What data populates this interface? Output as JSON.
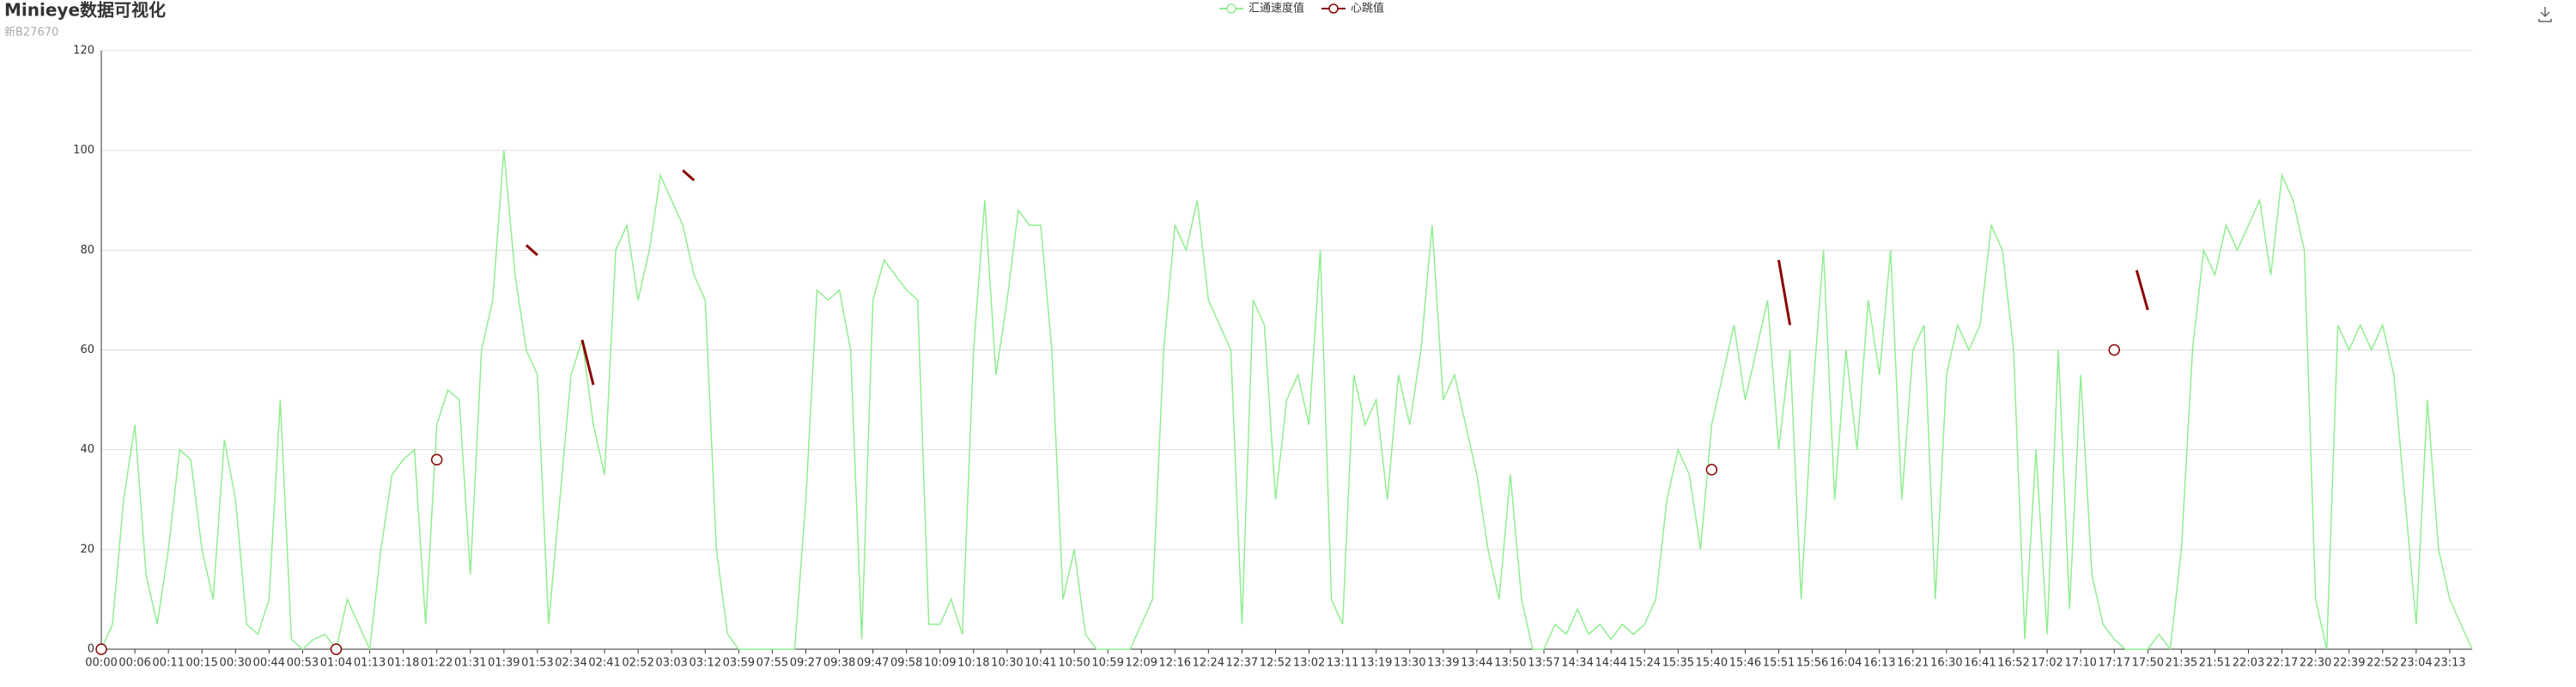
{
  "chart_data": {
    "type": "line",
    "title": "Minieye数据可视化",
    "subtitle": "新B27670",
    "categories": [
      "00:00",
      null,
      null,
      "00:06",
      null,
      null,
      "00:11",
      null,
      null,
      "00:15",
      null,
      null,
      "00:30",
      null,
      null,
      "00:44",
      null,
      null,
      "00:53",
      null,
      null,
      "01:04",
      null,
      null,
      "01:13",
      null,
      null,
      "01:18",
      null,
      null,
      "01:22",
      null,
      null,
      "01:31",
      null,
      null,
      "01:39",
      null,
      null,
      "01:53",
      null,
      null,
      "02:34",
      null,
      null,
      "02:41",
      null,
      null,
      "02:52",
      null,
      null,
      "03:03",
      null,
      null,
      "03:12",
      null,
      null,
      "03:59",
      null,
      null,
      "07:55",
      null,
      null,
      "09:27",
      null,
      null,
      "09:38",
      null,
      null,
      "09:47",
      null,
      null,
      "09:58",
      null,
      null,
      "10:09",
      null,
      null,
      "10:18",
      null,
      null,
      "10:30",
      null,
      null,
      "10:41",
      null,
      null,
      "10:50",
      null,
      null,
      "10:59",
      null,
      null,
      "12:09",
      null,
      null,
      "12:16",
      null,
      null,
      "12:24",
      null,
      null,
      "12:37",
      null,
      null,
      "12:52",
      null,
      null,
      "13:02",
      null,
      null,
      "13:11",
      null,
      null,
      "13:19",
      null,
      null,
      "13:30",
      null,
      null,
      "13:39",
      null,
      null,
      "13:44",
      null,
      null,
      "13:50",
      null,
      null,
      "13:57",
      null,
      null,
      "14:34",
      null,
      null,
      "14:44",
      null,
      null,
      "15:24",
      null,
      null,
      "15:35",
      null,
      null,
      "15:40",
      null,
      null,
      "15:46",
      null,
      null,
      "15:51",
      null,
      null,
      "15:56",
      null,
      null,
      "16:04",
      null,
      null,
      "16:13",
      null,
      null,
      "16:21",
      null,
      null,
      "16:30",
      null,
      null,
      "16:41",
      null,
      null,
      "16:52",
      null,
      null,
      "17:02",
      null,
      null,
      "17:10",
      null,
      null,
      "17:17",
      null,
      null,
      "17:50",
      null,
      null,
      "21:35",
      null,
      null,
      "21:51",
      null,
      null,
      "22:03",
      null,
      null,
      "22:17",
      null,
      null,
      "22:30",
      null,
      null,
      "22:39",
      null,
      null,
      "22:52",
      null,
      null,
      "23:04",
      null,
      null,
      "23:13",
      null,
      null
    ],
    "series": [
      {
        "name": "汇通速度值",
        "color": "#90ee90",
        "values": [
          0,
          5,
          30,
          45,
          15,
          5,
          20,
          40,
          38,
          20,
          10,
          42,
          30,
          5,
          3,
          10,
          50,
          2,
          0,
          2,
          3,
          0,
          10,
          5,
          0,
          20,
          35,
          38,
          40,
          5,
          45,
          52,
          50,
          15,
          60,
          70,
          100,
          75,
          60,
          55,
          5,
          30,
          55,
          62,
          45,
          35,
          80,
          85,
          70,
          80,
          95,
          90,
          85,
          75,
          70,
          20,
          3,
          0,
          0,
          0,
          0,
          0,
          0,
          30,
          72,
          70,
          72,
          60,
          2,
          70,
          78,
          75,
          72,
          70,
          5,
          5,
          10,
          3,
          60,
          90,
          55,
          70,
          88,
          85,
          85,
          60,
          10,
          20,
          3,
          0,
          0,
          0,
          0,
          5,
          10,
          60,
          85,
          80,
          90,
          70,
          65,
          60,
          5,
          70,
          65,
          30,
          50,
          55,
          45,
          80,
          10,
          5,
          55,
          45,
          50,
          30,
          55,
          45,
          60,
          85,
          50,
          55,
          45,
          35,
          20,
          10,
          35,
          10,
          0,
          0,
          5,
          3,
          8,
          3,
          5,
          2,
          5,
          3,
          5,
          10,
          30,
          40,
          35,
          20,
          45,
          55,
          65,
          50,
          60,
          70,
          40,
          60,
          10,
          50,
          80,
          30,
          60,
          40,
          70,
          55,
          80,
          30,
          60,
          65,
          10,
          55,
          65,
          60,
          65,
          85,
          80,
          60,
          2,
          40,
          3,
          60,
          8,
          55,
          15,
          5,
          2,
          0,
          0,
          0,
          3,
          0,
          20,
          60,
          80,
          75,
          85,
          80,
          85,
          90,
          75,
          95,
          90,
          80,
          10,
          0,
          65,
          60,
          65,
          60,
          65,
          55,
          30,
          5,
          50,
          20,
          10,
          5,
          0
        ]
      },
      {
        "name": "心跳值",
        "color": "#8b0000",
        "values": [
          0,
          null,
          null,
          null,
          null,
          null,
          null,
          null,
          null,
          null,
          null,
          null,
          null,
          null,
          null,
          null,
          null,
          null,
          null,
          null,
          null,
          0,
          null,
          null,
          null,
          null,
          null,
          null,
          null,
          null,
          38,
          null,
          null,
          null,
          null,
          null,
          null,
          null,
          81,
          79,
          null,
          null,
          null,
          62,
          53,
          null,
          null,
          null,
          null,
          null,
          null,
          null,
          96,
          94,
          null,
          null,
          null,
          null,
          null,
          null,
          null,
          null,
          null,
          null,
          null,
          null,
          null,
          null,
          null,
          null,
          null,
          null,
          null,
          null,
          null,
          null,
          null,
          null,
          null,
          null,
          null,
          null,
          null,
          null,
          null,
          null,
          null,
          null,
          null,
          null,
          null,
          null,
          null,
          null,
          null,
          null,
          null,
          null,
          null,
          null,
          null,
          null,
          null,
          null,
          null,
          null,
          null,
          null,
          null,
          null,
          null,
          null,
          null,
          null,
          null,
          null,
          null,
          null,
          null,
          null,
          null,
          null,
          null,
          null,
          null,
          null,
          null,
          null,
          null,
          null,
          null,
          null,
          null,
          null,
          null,
          null,
          null,
          null,
          null,
          null,
          null,
          null,
          null,
          null,
          36,
          null,
          null,
          null,
          null,
          null,
          78,
          65,
          null,
          null,
          null,
          null,
          null,
          null,
          null,
          null,
          null,
          null,
          null,
          null,
          null,
          null,
          null,
          null,
          null,
          null,
          null,
          null,
          null,
          null,
          null,
          null,
          null,
          null,
          null,
          null,
          60,
          null,
          76,
          68,
          null,
          null,
          null,
          null,
          null,
          null,
          null,
          null,
          null,
          null,
          null,
          null,
          null,
          null,
          null,
          null,
          null,
          null,
          null,
          null,
          null,
          null,
          null,
          null,
          null,
          null,
          null,
          null,
          null
        ]
      }
    ],
    "ylim": [
      0,
      120
    ],
    "yticks": [
      0,
      20,
      40,
      60,
      80,
      100,
      120
    ],
    "grid": true,
    "legend": "top"
  }
}
